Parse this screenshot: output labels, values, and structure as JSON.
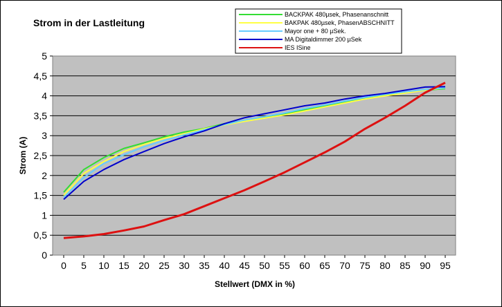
{
  "chart_data": {
    "type": "line",
    "title": "Strom in der Lastleitung",
    "xlabel": "Stellwert (DMX in %)",
    "ylabel": "Strom (A)",
    "x": [
      0,
      5,
      10,
      15,
      20,
      25,
      30,
      35,
      40,
      45,
      50,
      55,
      60,
      65,
      70,
      75,
      80,
      85,
      90,
      95
    ],
    "x_tick_labels": [
      "0",
      "5",
      "10",
      "15",
      "20",
      "25",
      "30",
      "35",
      "40",
      "45",
      "50",
      "55",
      "60",
      "65",
      "70",
      "75",
      "80",
      "85",
      "90",
      "95"
    ],
    "y_tick_labels": [
      "0",
      "0,5",
      "1",
      "1,5",
      "2",
      "2,5",
      "3",
      "3,5",
      "4",
      "4,5",
      "5"
    ],
    "ylim": [
      0,
      5
    ],
    "grid": "horizontal",
    "legend_position": "top-right",
    "background_color": "#c0c0c0",
    "series": [
      {
        "name": "BACKPAK 480µsek, Phasenanschnitt",
        "color": "#33dd33",
        "values": [
          1.58,
          2.15,
          2.45,
          2.68,
          2.82,
          2.97,
          3.09,
          3.18,
          3.3,
          3.38,
          3.46,
          3.55,
          3.65,
          3.74,
          3.84,
          3.93,
          4.01,
          4.08,
          4.14,
          4.18
        ]
      },
      {
        "name": "BAKPAK 480µsek, PhasenABSCHNITT",
        "color": "#ffff44",
        "values": [
          1.5,
          2.05,
          2.35,
          2.6,
          2.78,
          2.93,
          3.05,
          3.17,
          3.27,
          3.36,
          3.44,
          3.52,
          3.62,
          3.72,
          3.82,
          3.92,
          4.0,
          4.07,
          4.14,
          4.2
        ]
      },
      {
        "name": "Mayor one + 80 µSek.",
        "color": "#66ccff",
        "values": [
          1.45,
          1.95,
          2.3,
          2.52,
          2.72,
          2.88,
          3.02,
          3.15,
          3.28,
          3.39,
          3.48,
          3.57,
          3.68,
          3.77,
          3.87,
          3.96,
          4.04,
          4.1,
          4.16,
          4.2
        ]
      },
      {
        "name": "MA Digitaldimmer 200 µSek",
        "color": "#0000cc",
        "values": [
          1.4,
          1.85,
          2.15,
          2.4,
          2.6,
          2.8,
          2.97,
          3.12,
          3.3,
          3.45,
          3.55,
          3.65,
          3.75,
          3.82,
          3.92,
          4.0,
          4.06,
          4.14,
          4.22,
          4.23
        ]
      },
      {
        "name": "IES ISine",
        "color": "#dd1111",
        "values": [
          0.43,
          0.47,
          0.53,
          0.62,
          0.72,
          0.88,
          1.03,
          1.23,
          1.43,
          1.63,
          1.85,
          2.08,
          2.33,
          2.58,
          2.85,
          3.17,
          3.45,
          3.75,
          4.08,
          4.33
        ]
      }
    ]
  }
}
